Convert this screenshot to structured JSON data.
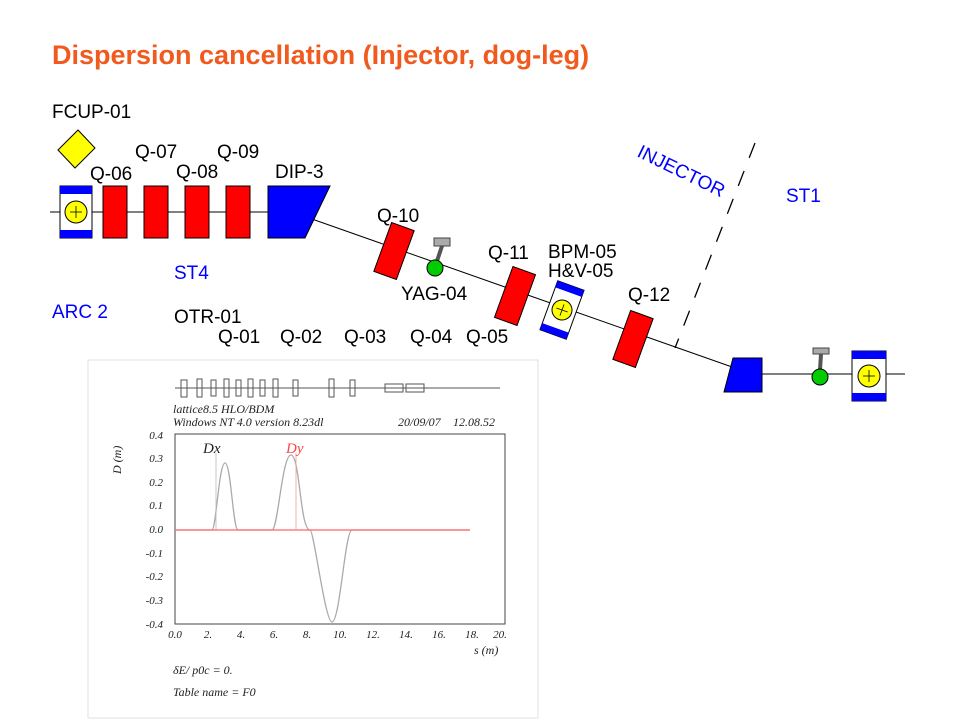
{
  "title": "Dispersion cancellation (Injector, dog-leg)",
  "labels": {
    "fcup": "FCUP-01",
    "q06": "Q-06",
    "q07": "Q-07",
    "q08": "Q-08",
    "q09": "Q-09",
    "dip3": "DIP-3",
    "q10": "Q-10",
    "q11": "Q-11",
    "bpm05": "BPM-05",
    "hv05": "H&V-05",
    "q12": "Q-12",
    "yag04": "YAG-04",
    "st4": "ST4",
    "arc2": "ARC 2",
    "otr01": "OTR-01",
    "q01": "Q-01",
    "q02": "Q-02",
    "q03": "Q-03",
    "q04": "Q-04",
    "q05": "Q-05",
    "injector": "INJECTOR",
    "st1": "ST1"
  },
  "colors": {
    "title": "#f05a1e",
    "quadrupole": "#ff0000",
    "dipole": "#0000ff",
    "bpm_frame": "#0000ff",
    "bpm_core": "#ffff00",
    "faraday_cup": "#ffff00",
    "screen_green": "#00cc00",
    "zone_label": "#0000ff"
  },
  "plot": {
    "header_line1": "lattice8.5 HLO/BDM",
    "header_line2": "Windows NT 4.0 version 8.23dl",
    "date": "20/09/07",
    "time": "12.08.52",
    "ylabel": "D (m)",
    "xlabel": "s (m)",
    "dx_label": "Dx",
    "dy_label": "Dy",
    "footer_line1": "δE/ p0c = 0.",
    "footer_line2": "Table name = F0",
    "y_ticks": [
      "0.4",
      "0.3",
      "0.2",
      "0.1",
      "0.0",
      "-0.1",
      "-0.2",
      "-0.3",
      "-0.4"
    ],
    "x_ticks": [
      "0.0",
      "2.",
      "4.",
      "6.",
      "8.",
      "10.",
      "12.",
      "14.",
      "16.",
      "18.",
      "20."
    ]
  }
}
